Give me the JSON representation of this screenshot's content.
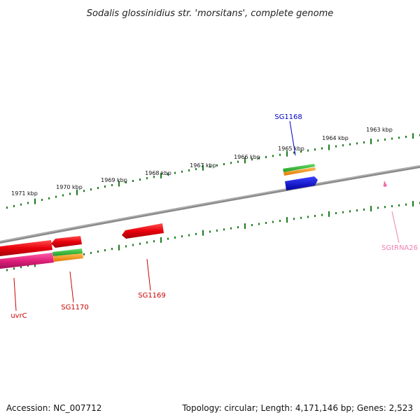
{
  "title": "Sodalis glossinidius str. 'morsitans', complete genome",
  "footer": {
    "accession": "Accession: NC_007712",
    "summary": "Topology: circular; Length: 4,171,146 bp; Genes: 2,523"
  },
  "colors": {
    "backbone": "#808080",
    "tick": "#1a7a1a",
    "feature_red": "#e8000c",
    "feature_pink": "#e0207a",
    "feature_green": "#33bb33",
    "feature_orange": "#ff9a1a",
    "feature_blue": "#0a10d8",
    "feature_lightpink": "#f060a0",
    "label_red": "#cc0000",
    "label_blue": "#0000cc",
    "label_pink": "#f080b0"
  },
  "ticks": [
    "1963 kbp",
    "1964 kbp",
    "1965 kbp",
    "1966 kbp",
    "1967 kbp",
    "1968 kbp",
    "1969 kbp",
    "1970 kbp",
    "1971 kbp"
  ],
  "gene_labels": {
    "sg1168": "SG1168",
    "sgtrna26": "SGtRNA26",
    "uvrc": "uvrC",
    "sg1170": "SG1170",
    "sg1169": "SG1169"
  }
}
